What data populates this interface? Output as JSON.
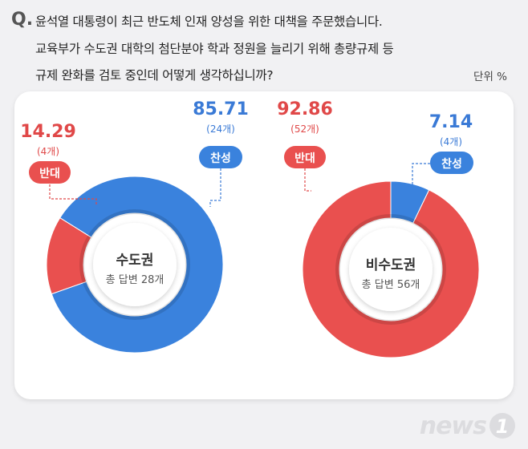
{
  "question": {
    "marker": "Q.",
    "lines": [
      "윤석열 대통령이 최근 반도체 인재 양성을 위한 대책을 주문했습니다.",
      "교육부가 수도권 대학의 첨단분야 학과 정원을 늘리기 위해 총량규제 등",
      "규제 완화를 검토 중인데 어떻게 생각하십니까?"
    ]
  },
  "unit_label": "단위  %",
  "colors": {
    "approve": "#3a82dd",
    "oppose": "#e9504f",
    "approve_label": "#3a7ad6",
    "oppose_label": "#e04848"
  },
  "chart_data": [
    {
      "type": "pie",
      "center_title": "수도권",
      "center_sub": "총 답변 28개",
      "series": [
        {
          "name": "찬성",
          "value": 85.71,
          "value_label": "85.71",
          "count_label": "(24개)"
        },
        {
          "name": "반대",
          "value": 14.29,
          "value_label": "14.29",
          "count_label": "(4개)"
        }
      ]
    },
    {
      "type": "pie",
      "center_title": "비수도권",
      "center_sub": "총 답변 56개",
      "series": [
        {
          "name": "찬성",
          "value": 7.14,
          "value_label": "7.14",
          "count_label": "(4개)"
        },
        {
          "name": "반대",
          "value": 92.86,
          "value_label": "92.86",
          "count_label": "(52개)"
        }
      ]
    }
  ],
  "logo": {
    "text": "news",
    "mark": "1"
  }
}
